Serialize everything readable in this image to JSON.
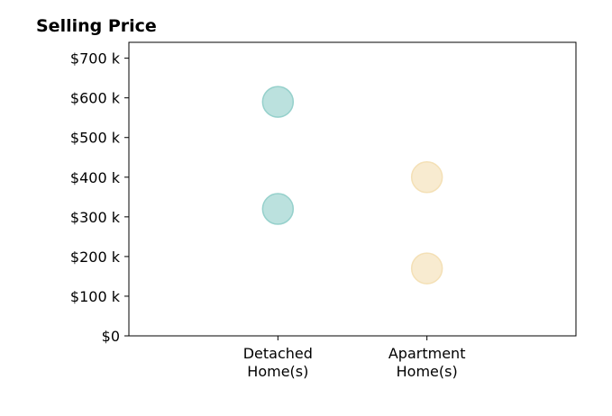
{
  "chart_data": {
    "type": "scatter",
    "title": "Selling Price",
    "xlabel": "",
    "ylabel": "",
    "categories": [
      {
        "line1": "Detached",
        "line2": "Home(s)"
      },
      {
        "line1": "Apartment",
        "line2": "Home(s)"
      }
    ],
    "xlim": [
      -1,
      2
    ],
    "ylim": [
      0,
      740000
    ],
    "yticks": [
      {
        "value": 0,
        "label": "$0"
      },
      {
        "value": 100000,
        "label": "$100 k"
      },
      {
        "value": 200000,
        "label": "$200 k"
      },
      {
        "value": 300000,
        "label": "$300 k"
      },
      {
        "value": 400000,
        "label": "$400 k"
      },
      {
        "value": 500000,
        "label": "$500 k"
      },
      {
        "value": 600000,
        "label": "$600 k"
      },
      {
        "value": 700000,
        "label": "$700 k"
      }
    ],
    "series": [
      {
        "category_index": 0,
        "color": "#8ecdc8",
        "values": [
          590000,
          320000
        ]
      },
      {
        "category_index": 1,
        "color": "#f3deb0",
        "values": [
          400000,
          170000
        ]
      }
    ],
    "grid": false,
    "legend": "none"
  }
}
